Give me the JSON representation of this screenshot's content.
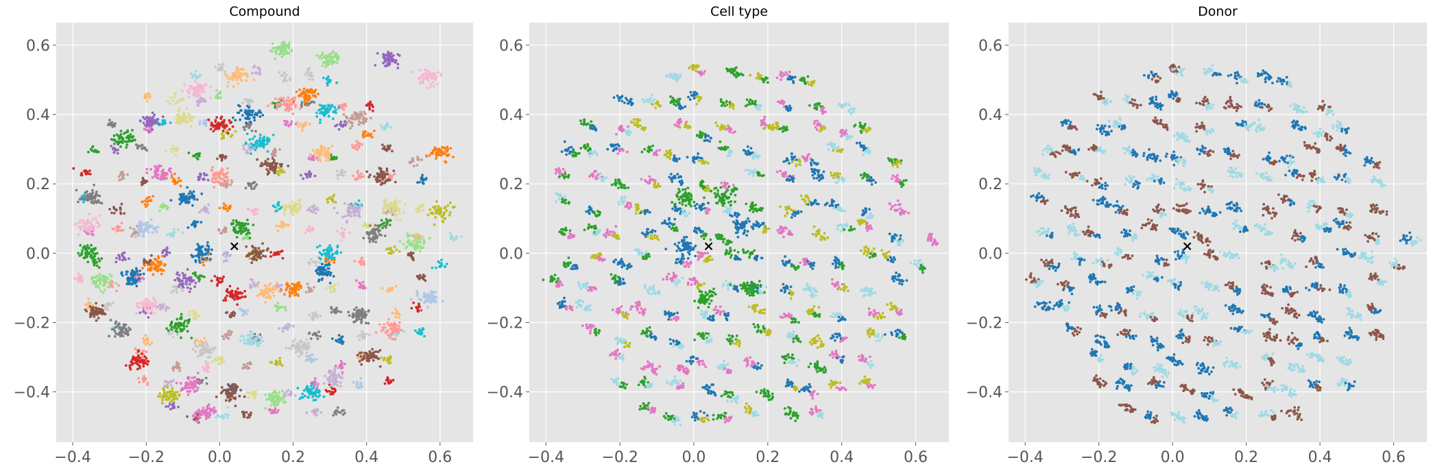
{
  "figure": {
    "background": "#ffffff",
    "axes_facecolor": "#e5e5e5",
    "grid_color": "#ffffff",
    "tick_label_color": "#555555",
    "title_color": "#000000"
  },
  "chart_data": [
    {
      "type": "scatter",
      "title": "Compound",
      "xlabel": "",
      "ylabel": "",
      "xlim": [
        -0.445,
        0.69
      ],
      "ylim": [
        -0.545,
        0.665
      ],
      "x_ticks": [
        -0.4,
        -0.2,
        0.0,
        0.2,
        0.4,
        0.6
      ],
      "x_tick_labels": [
        "−0.4",
        "−0.2",
        "0.0",
        "0.2",
        "0.4",
        "0.6"
      ],
      "y_ticks": [
        -0.4,
        -0.2,
        0.0,
        0.2,
        0.4,
        0.6
      ],
      "y_tick_labels": [
        "−0.4",
        "−0.2",
        "0.0",
        "0.2",
        "0.4",
        "0.6"
      ],
      "grid": true,
      "legend": "none",
      "marker": {
        "x": 0.04,
        "y": 0.02,
        "symbol": "x",
        "color": "#000000"
      },
      "clusters": [
        {
          "x": -0.34,
          "y": -0.17,
          "color": "#8c564b"
        },
        {
          "x": -0.22,
          "y": -0.31,
          "color": "#d62728"
        },
        {
          "x": -0.11,
          "y": -0.21,
          "color": "#2ca02c"
        },
        {
          "x": 0.04,
          "y": -0.12,
          "color": "#d62728"
        },
        {
          "x": -0.26,
          "y": 0.33,
          "color": "#2ca02c"
        },
        {
          "x": -0.19,
          "y": 0.38,
          "color": "#9467bd"
        },
        {
          "x": -0.1,
          "y": 0.39,
          "color": "#dbdb8d"
        },
        {
          "x": 0.0,
          "y": 0.37,
          "color": "#d62728"
        },
        {
          "x": 0.08,
          "y": 0.4,
          "color": "#1f77b4"
        },
        {
          "x": 0.18,
          "y": 0.43,
          "color": "#ff9896"
        },
        {
          "x": 0.29,
          "y": 0.41,
          "color": "#17becf"
        },
        {
          "x": 0.37,
          "y": 0.39,
          "color": "#c49c94"
        },
        {
          "x": 0.46,
          "y": 0.56,
          "color": "#9467bd"
        },
        {
          "x": 0.57,
          "y": 0.51,
          "color": "#f7b6d2"
        },
        {
          "x": 0.6,
          "y": 0.29,
          "color": "#ff7f0e"
        },
        {
          "x": 0.6,
          "y": 0.12,
          "color": "#bcbd22"
        },
        {
          "x": 0.53,
          "y": 0.03,
          "color": "#98df8a"
        },
        {
          "x": 0.57,
          "y": -0.13,
          "color": "#aec7e8"
        },
        {
          "x": 0.47,
          "y": -0.22,
          "color": "#ff9896"
        },
        {
          "x": 0.41,
          "y": -0.3,
          "color": "#8c564b"
        },
        {
          "x": 0.31,
          "y": -0.36,
          "color": "#c5b0d5"
        },
        {
          "x": 0.25,
          "y": -0.4,
          "color": "#17becf"
        },
        {
          "x": 0.15,
          "y": -0.42,
          "color": "#98df8a"
        },
        {
          "x": 0.03,
          "y": -0.4,
          "color": "#8c564b"
        },
        {
          "x": -0.08,
          "y": -0.38,
          "color": "#e377c2"
        },
        {
          "x": -0.14,
          "y": -0.41,
          "color": "#bcbd22"
        },
        {
          "x": -0.04,
          "y": -0.46,
          "color": "#e377c2"
        },
        {
          "x": -0.36,
          "y": 0.0,
          "color": "#2ca02c"
        },
        {
          "x": -0.36,
          "y": 0.08,
          "color": "#f7b6d2"
        },
        {
          "x": -0.35,
          "y": 0.16,
          "color": "#7f7f7f"
        },
        {
          "x": -0.32,
          "y": -0.08,
          "color": "#98df8a"
        },
        {
          "x": -0.27,
          "y": -0.22,
          "color": "#7f7f7f"
        },
        {
          "x": 0.17,
          "y": 0.59,
          "color": "#98df8a"
        },
        {
          "x": 0.3,
          "y": 0.56,
          "color": "#98df8a"
        },
        {
          "x": 0.05,
          "y": 0.51,
          "color": "#ffbb78"
        },
        {
          "x": -0.06,
          "y": 0.47,
          "color": "#f7b6d2"
        },
        {
          "x": 0.24,
          "y": 0.46,
          "color": "#ff7f0e"
        },
        {
          "x": 0.11,
          "y": 0.32,
          "color": "#17becf"
        },
        {
          "x": -0.16,
          "y": 0.23,
          "color": "#e377c2"
        },
        {
          "x": 0.0,
          "y": 0.22,
          "color": "#ff9896"
        },
        {
          "x": 0.14,
          "y": 0.25,
          "color": "#8c564b"
        },
        {
          "x": 0.28,
          "y": 0.29,
          "color": "#ffbb78"
        },
        {
          "x": 0.44,
          "y": 0.22,
          "color": "#8c564b"
        },
        {
          "x": 0.47,
          "y": 0.13,
          "color": "#dbdb8d"
        },
        {
          "x": 0.42,
          "y": 0.06,
          "color": "#7f7f7f"
        },
        {
          "x": 0.3,
          "y": 0.0,
          "color": "#17becf"
        },
        {
          "x": 0.28,
          "y": -0.05,
          "color": "#1f77b4"
        },
        {
          "x": 0.2,
          "y": -0.1,
          "color": "#ff7f0e"
        },
        {
          "x": 0.13,
          "y": -0.11,
          "color": "#ffbb78"
        },
        {
          "x": 0.1,
          "y": 0.0,
          "color": "#8c564b"
        },
        {
          "x": -0.05,
          "y": 0.0,
          "color": "#1f77b4"
        },
        {
          "x": -0.17,
          "y": -0.04,
          "color": "#ff7f0e"
        },
        {
          "x": -0.09,
          "y": -0.08,
          "color": "#9467bd"
        },
        {
          "x": -0.2,
          "y": 0.07,
          "color": "#aec7e8"
        },
        {
          "x": -0.09,
          "y": 0.16,
          "color": "#1f77b4"
        },
        {
          "x": 0.06,
          "y": 0.07,
          "color": "#2ca02c"
        },
        {
          "x": 0.2,
          "y": 0.13,
          "color": "#dbdb8d"
        },
        {
          "x": 0.36,
          "y": 0.12,
          "color": "#c5b0d5"
        },
        {
          "x": 0.22,
          "y": -0.27,
          "color": "#c7c7c7"
        },
        {
          "x": 0.09,
          "y": -0.25,
          "color": "#9edae5"
        },
        {
          "x": -0.04,
          "y": -0.28,
          "color": "#c7c7c7"
        },
        {
          "x": -0.2,
          "y": -0.15,
          "color": "#f7b6d2"
        },
        {
          "x": 0.38,
          "y": -0.18,
          "color": "#7f7f7f"
        },
        {
          "x": -0.24,
          "y": -0.07,
          "color": "#1f77b4"
        }
      ]
    },
    {
      "type": "scatter",
      "title": "Cell type",
      "xlabel": "",
      "ylabel": "",
      "xlim": [
        -0.445,
        0.69
      ],
      "ylim": [
        -0.545,
        0.665
      ],
      "x_ticks": [
        -0.4,
        -0.2,
        0.0,
        0.2,
        0.4,
        0.6
      ],
      "x_tick_labels": [
        "−0.4",
        "−0.2",
        "0.0",
        "0.2",
        "0.4",
        "0.6"
      ],
      "y_ticks": [
        -0.4,
        -0.2,
        0.0,
        0.2,
        0.4,
        0.6
      ],
      "y_tick_labels": [
        "−0.4",
        "−0.2",
        "0.0",
        "0.2",
        "0.4",
        "0.6"
      ],
      "grid": true,
      "legend": "none",
      "marker": {
        "x": 0.04,
        "y": 0.02,
        "symbol": "x",
        "color": "#000000"
      },
      "palette": [
        "#e377c2",
        "#bcbd22",
        "#9edae5",
        "#2ca02c",
        "#1f77b4"
      ],
      "clusters": [
        {
          "x": 0.03,
          "y": -0.13,
          "color": "#2ca02c"
        },
        {
          "x": 0.08,
          "y": 0.16,
          "color": "#2ca02c"
        },
        {
          "x": -0.02,
          "y": 0.02,
          "color": "#1f77b4"
        },
        {
          "x": 0.13,
          "y": 0.08,
          "color": "#1f77b4"
        },
        {
          "x": 0.15,
          "y": -0.1,
          "color": "#2ca02c"
        },
        {
          "x": -0.02,
          "y": 0.16,
          "color": "#2ca02c"
        }
      ]
    },
    {
      "type": "scatter",
      "title": "Donor",
      "xlabel": "",
      "ylabel": "",
      "xlim": [
        -0.445,
        0.69
      ],
      "ylim": [
        -0.545,
        0.665
      ],
      "x_ticks": [
        -0.4,
        -0.2,
        0.0,
        0.2,
        0.4,
        0.6
      ],
      "x_tick_labels": [
        "−0.4",
        "−0.2",
        "0.0",
        "0.2",
        "0.4",
        "0.6"
      ],
      "y_ticks": [
        -0.4,
        -0.2,
        0.0,
        0.2,
        0.4,
        0.6
      ],
      "y_tick_labels": [
        "−0.4",
        "−0.2",
        "0.0",
        "0.2",
        "0.4",
        "0.6"
      ],
      "grid": true,
      "legend": "none",
      "marker": {
        "x": 0.04,
        "y": 0.02,
        "symbol": "x",
        "color": "#000000"
      },
      "palette": [
        "#1f77b4",
        "#8c564b",
        "#9edae5"
      ],
      "clusters": []
    }
  ]
}
